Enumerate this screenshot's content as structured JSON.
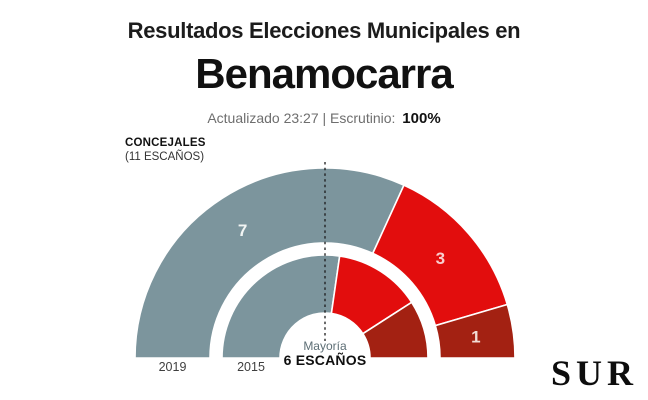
{
  "header": {
    "title_prefix": "Resultados Elecciones Municipales en",
    "municipality": "Benamocarra",
    "meta_text": "Actualizado 23:27 | Escrutinio:",
    "scrutiny_value": "100%"
  },
  "chart": {
    "unit_label": "CONCEJALES",
    "total_label": "(11 ESCAÑOS)",
    "majority_word": "Mayoría",
    "majority_value": "6 ESCAÑOS"
  },
  "chart_data": {
    "type": "pie",
    "variant": "nested-half-donut-hemicycle",
    "title": "CONCEJALES (11 ESCAÑOS)",
    "total_seats": 11,
    "majority_seats": 6,
    "majority_annotation": "Mayoría 6 ESCAÑOS",
    "legend_position": "none",
    "categories": [
      "2019",
      "2015"
    ],
    "rings": [
      {
        "year": "2019",
        "show_seat_labels": true,
        "segments": [
          {
            "seats": 7,
            "color": "#7C959D",
            "label_color": "#F2F5F4"
          },
          {
            "seats": 3,
            "color": "#E20D0D",
            "label_color": "#F8CFCF"
          },
          {
            "seats": 1,
            "color": "#A32112",
            "label_color": "#F2DCD5"
          }
        ]
      },
      {
        "year": "2015",
        "show_seat_labels": false,
        "segments": [
          {
            "seats": 6,
            "color": "#7C959D"
          },
          {
            "seats": 3,
            "color": "#E20D0D"
          },
          {
            "seats": 2,
            "color": "#A32112"
          }
        ]
      }
    ]
  },
  "footer": {
    "logo_text": "SUR"
  }
}
